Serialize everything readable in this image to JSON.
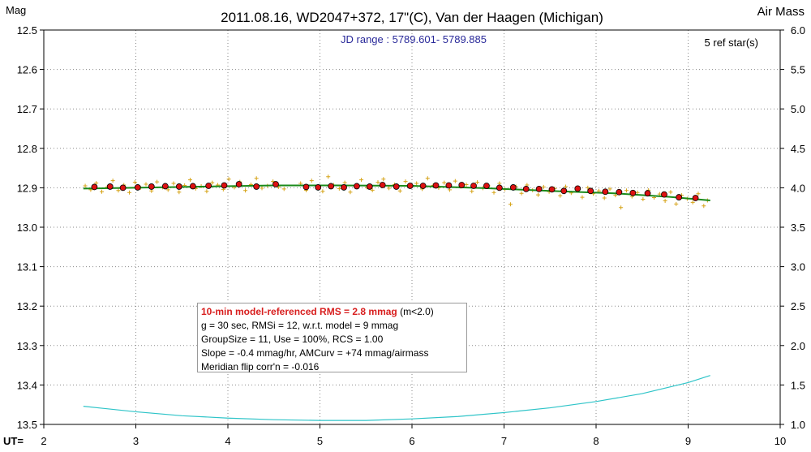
{
  "colors": {
    "raw_points": "#d6a418",
    "binned_points": "#dd1111",
    "model_line": "#1a8a1a",
    "airmass_line": "#2ec4c8",
    "grid": "#8a8a8a"
  },
  "chart_data": {
    "type": "scatter",
    "title": "2011.08.16, WD2047+372, 17\"(C), Van der Haagen (Michigan)",
    "subtitle": "JD range : 5789.601- 5789.885",
    "ref_stars": "5 ref star(s)",
    "xlabel": "UT=",
    "ylabel_left": "Mag",
    "ylabel_right": "Air Mass",
    "xlim": [
      2,
      10
    ],
    "ylim_left": [
      12.5,
      13.5
    ],
    "ylim_right": [
      6.0,
      1.0
    ],
    "left_axis_inverted": true,
    "grid": true,
    "x_ticks": [
      "2",
      "3",
      "4",
      "5",
      "6",
      "7",
      "8",
      "9",
      "10"
    ],
    "y_ticks_left": [
      "12.5",
      "12.6",
      "12.7",
      "12.8",
      "12.9",
      "13.0",
      "13.1",
      "13.2",
      "13.3",
      "13.4",
      "13.5"
    ],
    "y_ticks_right": [
      "6.0",
      "5.5",
      "5.0",
      "4.5",
      "4.0",
      "3.5",
      "3.0",
      "2.5",
      "2.0",
      "1.5",
      "1.0"
    ],
    "series": [
      {
        "type": "line",
        "role": "model",
        "x": [
          2.43,
          3.5,
          4.5,
          5.2,
          6.0,
          6.8,
          7.5,
          8.2,
          8.8,
          9.24
        ],
        "y": [
          12.902,
          12.898,
          12.894,
          12.894,
          12.895,
          12.901,
          12.908,
          12.914,
          12.923,
          12.932
        ]
      },
      {
        "type": "scatter",
        "role": "binned",
        "x": [
          2.55,
          2.72,
          2.86,
          3.02,
          3.17,
          3.32,
          3.47,
          3.62,
          3.79,
          3.96,
          4.12,
          4.31,
          4.52,
          4.85,
          4.98,
          5.12,
          5.26,
          5.4,
          5.54,
          5.68,
          5.83,
          5.98,
          6.12,
          6.26,
          6.4,
          6.54,
          6.67,
          6.81,
          6.95,
          7.1,
          7.24,
          7.38,
          7.52,
          7.65,
          7.8,
          7.94,
          8.1,
          8.25,
          8.4,
          8.56,
          8.74,
          8.9,
          9.08
        ],
        "y": [
          12.898,
          12.897,
          12.9,
          12.899,
          12.897,
          12.896,
          12.897,
          12.896,
          12.895,
          12.894,
          12.891,
          12.897,
          12.891,
          12.898,
          12.899,
          12.896,
          12.899,
          12.896,
          12.897,
          12.893,
          12.897,
          12.895,
          12.895,
          12.894,
          12.894,
          12.893,
          12.895,
          12.895,
          12.9,
          12.899,
          12.903,
          12.903,
          12.904,
          12.908,
          12.902,
          12.908,
          12.91,
          12.911,
          12.913,
          12.914,
          12.917,
          12.924,
          12.926
        ]
      },
      {
        "type": "scatter",
        "role": "raw",
        "x": [
          2.45,
          2.51,
          2.57,
          2.63,
          2.69,
          2.75,
          2.81,
          2.87,
          2.93,
          2.99,
          3.05,
          3.11,
          3.17,
          3.23,
          3.29,
          3.35,
          3.41,
          3.47,
          3.53,
          3.59,
          3.65,
          3.71,
          3.77,
          3.83,
          3.89,
          3.95,
          4.01,
          4.07,
          4.13,
          4.19,
          4.25,
          4.31,
          4.37,
          4.43,
          4.49,
          4.55,
          4.61,
          4.79,
          4.85,
          4.91,
          4.97,
          5.03,
          5.09,
          5.15,
          5.21,
          5.27,
          5.33,
          5.39,
          5.45,
          5.51,
          5.57,
          5.63,
          5.69,
          5.75,
          5.81,
          5.87,
          5.93,
          5.99,
          6.05,
          6.11,
          6.17,
          6.23,
          6.29,
          6.35,
          6.41,
          6.47,
          6.53,
          6.59,
          6.65,
          6.71,
          6.77,
          6.83,
          6.89,
          6.95,
          7.01,
          7.07,
          7.13,
          7.19,
          7.25,
          7.31,
          7.37,
          7.43,
          7.49,
          7.55,
          7.61,
          7.67,
          7.73,
          7.79,
          7.85,
          7.91,
          7.97,
          8.03,
          8.09,
          8.15,
          8.21,
          8.27,
          8.33,
          8.39,
          8.45,
          8.51,
          8.57,
          8.63,
          8.69,
          8.75,
          8.81,
          8.87,
          8.93,
          8.99,
          9.05,
          9.11,
          9.17,
          9.21
        ],
        "y": [
          12.895,
          12.905,
          12.888,
          12.91,
          12.898,
          12.882,
          12.907,
          12.893,
          12.912,
          12.886,
          12.9,
          12.891,
          12.908,
          12.885,
          12.899,
          12.905,
          12.889,
          12.911,
          12.894,
          12.88,
          12.902,
          12.896,
          12.909,
          12.887,
          12.893,
          12.904,
          12.878,
          12.899,
          12.885,
          12.907,
          12.892,
          12.876,
          12.901,
          12.895,
          12.884,
          12.898,
          12.903,
          12.889,
          12.906,
          12.882,
          12.897,
          12.909,
          12.872,
          12.893,
          12.902,
          12.887,
          12.911,
          12.894,
          12.88,
          12.899,
          12.906,
          12.886,
          12.878,
          12.901,
          12.892,
          12.908,
          12.884,
          12.897,
          12.889,
          12.903,
          12.876,
          12.894,
          12.9,
          12.887,
          12.905,
          12.883,
          12.897,
          12.892,
          12.909,
          12.886,
          12.901,
          12.895,
          12.912,
          12.889,
          12.904,
          12.942,
          12.897,
          12.914,
          12.893,
          12.906,
          12.918,
          12.898,
          12.91,
          12.902,
          12.92,
          12.897,
          12.913,
          12.905,
          12.924,
          12.9,
          12.915,
          12.908,
          12.926,
          12.903,
          12.919,
          12.95,
          12.907,
          12.922,
          12.912,
          12.929,
          12.906,
          12.925,
          12.916,
          12.933,
          12.911,
          12.941,
          12.919,
          12.928,
          12.937,
          12.915,
          12.946,
          12.932
        ]
      },
      {
        "type": "line",
        "role": "airmass",
        "axis": "right",
        "x": [
          2.43,
          3.0,
          3.5,
          4.0,
          4.5,
          5.0,
          5.5,
          6.0,
          6.5,
          7.0,
          7.5,
          8.0,
          8.5,
          9.0,
          9.24
        ],
        "y": [
          1.23,
          1.16,
          1.11,
          1.08,
          1.06,
          1.05,
          1.05,
          1.07,
          1.1,
          1.15,
          1.21,
          1.29,
          1.39,
          1.53,
          1.62
        ]
      }
    ]
  },
  "info_box": {
    "headline": "10-min model-referenced RMS = 2.8 mmag",
    "headline_suffix": " (m<2.0)",
    "line2": "g = 30 sec, RMSi = 12, w.r.t. model = 9 mmag",
    "line3": "GroupSize = 11, Use = 100%, RCS = 1.00",
    "line4": "Slope = -0.4 mmag/hr, AMCurv = +74 mmag/airmass",
    "line5": "Meridian flip corr'n = -0.016"
  }
}
